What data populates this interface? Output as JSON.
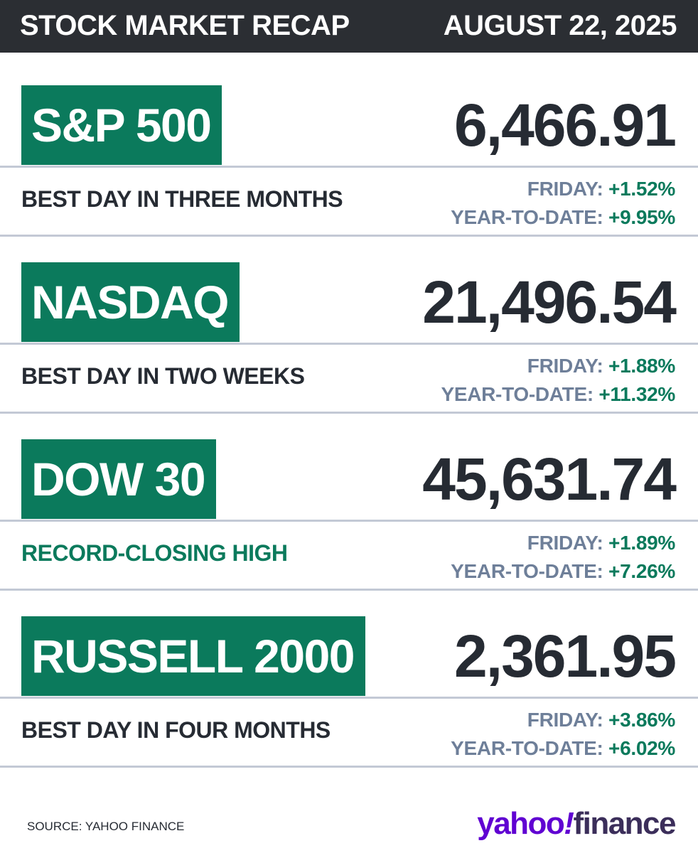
{
  "header": {
    "title": "STOCK MARKET RECAP",
    "date": "AUGUST 22, 2025"
  },
  "indices": [
    {
      "name": "S&P 500",
      "value": "6,466.91",
      "note": "BEST DAY IN THREE MONTHS",
      "friday_label": "FRIDAY:",
      "friday_change": "+1.52%",
      "ytd_label": "YEAR-TO-DATE:",
      "ytd_change": "+9.95%"
    },
    {
      "name": "NASDAQ",
      "value": "21,496.54",
      "note": "BEST DAY IN TWO WEEKS",
      "friday_label": "FRIDAY:",
      "friday_change": "+1.88%",
      "ytd_label": "YEAR-TO-DATE:",
      "ytd_change": "+11.32%"
    },
    {
      "name": "DOW 30",
      "value": "45,631.74",
      "note": "RECORD-CLOSING HIGH",
      "friday_label": "FRIDAY:",
      "friday_change": "+1.89%",
      "ytd_label": "YEAR-TO-DATE:",
      "ytd_change": "+7.26%"
    },
    {
      "name": "RUSSELL 2000",
      "value": "2,361.95",
      "note": "BEST DAY IN FOUR MONTHS",
      "friday_label": "FRIDAY:",
      "friday_change": "+3.86%",
      "ytd_label": "YEAR-TO-DATE:",
      "ytd_change": "+6.02%"
    }
  ],
  "footer": {
    "source": "SOURCE: YAHOO FINANCE",
    "brand_yahoo": "yahoo",
    "brand_bang": "!",
    "brand_finance": "finance"
  },
  "colors": {
    "accent_green": "#0b7a5c",
    "header_bg": "#2b2e33",
    "label_gray": "#6e7f99",
    "brand_purple": "#6001d2"
  }
}
